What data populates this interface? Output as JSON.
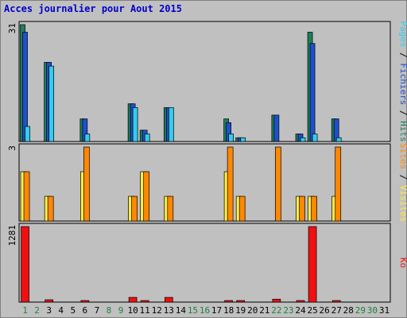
{
  "chart_data": {
    "type": "bar",
    "title": "Acces journalier pour Aout 2015",
    "categories": [
      "1",
      "2",
      "3",
      "4",
      "5",
      "6",
      "7",
      "8",
      "9",
      "10",
      "11",
      "12",
      "13",
      "14",
      "15",
      "16",
      "17",
      "18",
      "19",
      "20",
      "21",
      "22",
      "23",
      "24",
      "25",
      "26",
      "27",
      "28",
      "29",
      "30",
      "31"
    ],
    "weekend_days": [
      "1",
      "2",
      "8",
      "9",
      "15",
      "16",
      "22",
      "23",
      "29",
      "30"
    ],
    "colors": {
      "title": "#0000cc",
      "hits": "#1e7e5a",
      "files": "#1e4fd0",
      "pages": "#33ccee",
      "visits": "#ffee44",
      "sites": "#ff8800",
      "ko": "#ee1111",
      "weekday_tick": "#000000",
      "weekend_tick": "#1e8040",
      "plot_bg": "#c0c0c0"
    },
    "panels": [
      {
        "id": "hits-files-pages",
        "ymax_label": "31",
        "ymax": 31,
        "right_labels": [
          {
            "text": "Pages",
            "color": "#33ccee"
          },
          {
            "text": " / ",
            "color": "#000000"
          },
          {
            "text": "Fichiers",
            "color": "#1e4fd0"
          },
          {
            "text": " / ",
            "color": "#000000"
          },
          {
            "text": "Hits",
            "color": "#1e7e5a"
          }
        ],
        "series": [
          {
            "key": "hits",
            "values": [
              31,
              0,
              21,
              0,
              0,
              6,
              0,
              0,
              0,
              10,
              3,
              0,
              9,
              0,
              0,
              0,
              0,
              6,
              1,
              0,
              0,
              7,
              0,
              2,
              29,
              0,
              6,
              0,
              0,
              0,
              0
            ]
          },
          {
            "key": "files",
            "values": [
              29,
              0,
              21,
              0,
              0,
              6,
              0,
              0,
              0,
              10,
              3,
              0,
              9,
              0,
              0,
              0,
              0,
              5,
              1,
              0,
              0,
              7,
              0,
              2,
              26,
              0,
              6,
              0,
              0,
              0,
              0
            ]
          },
          {
            "key": "pages",
            "values": [
              4,
              0,
              20,
              0,
              0,
              2,
              0,
              0,
              0,
              9,
              2,
              0,
              9,
              0,
              0,
              0,
              0,
              2,
              1,
              0,
              0,
              0,
              0,
              1,
              2,
              0,
              1,
              0,
              0,
              0,
              0
            ]
          }
        ]
      },
      {
        "id": "visits-sites",
        "ymax_label": "3",
        "ymax": 3,
        "right_labels": [
          {
            "text": "Sites",
            "color": "#ff8800"
          },
          {
            "text": " / ",
            "color": "#000000"
          },
          {
            "text": "Visites",
            "color": "#ffee44"
          }
        ],
        "series": [
          {
            "key": "visits",
            "values": [
              2,
              0,
              1,
              0,
              0,
              2,
              0,
              0,
              0,
              1,
              2,
              0,
              1,
              0,
              0,
              0,
              0,
              2,
              1,
              0,
              0,
              0,
              0,
              1,
              1,
              0,
              1,
              0,
              0,
              0,
              0
            ]
          },
          {
            "key": "sites",
            "values": [
              2,
              0,
              1,
              0,
              0,
              3,
              0,
              0,
              0,
              1,
              2,
              0,
              1,
              0,
              0,
              0,
              0,
              3,
              1,
              0,
              0,
              3,
              0,
              1,
              1,
              0,
              3,
              0,
              0,
              0,
              0
            ]
          }
        ]
      },
      {
        "id": "ko",
        "ymax_label": "1281",
        "ymax": 1281,
        "right_labels": [
          {
            "text": "Ko",
            "color": "#ee1111"
          }
        ],
        "series": [
          {
            "key": "ko",
            "values": [
              1281,
              0,
              40,
              0,
              0,
              25,
              0,
              0,
              0,
              80,
              20,
              0,
              80,
              0,
              0,
              0,
              0,
              25,
              25,
              0,
              0,
              50,
              0,
              20,
              1281,
              0,
              25,
              0,
              0,
              0,
              0
            ]
          }
        ]
      }
    ]
  }
}
